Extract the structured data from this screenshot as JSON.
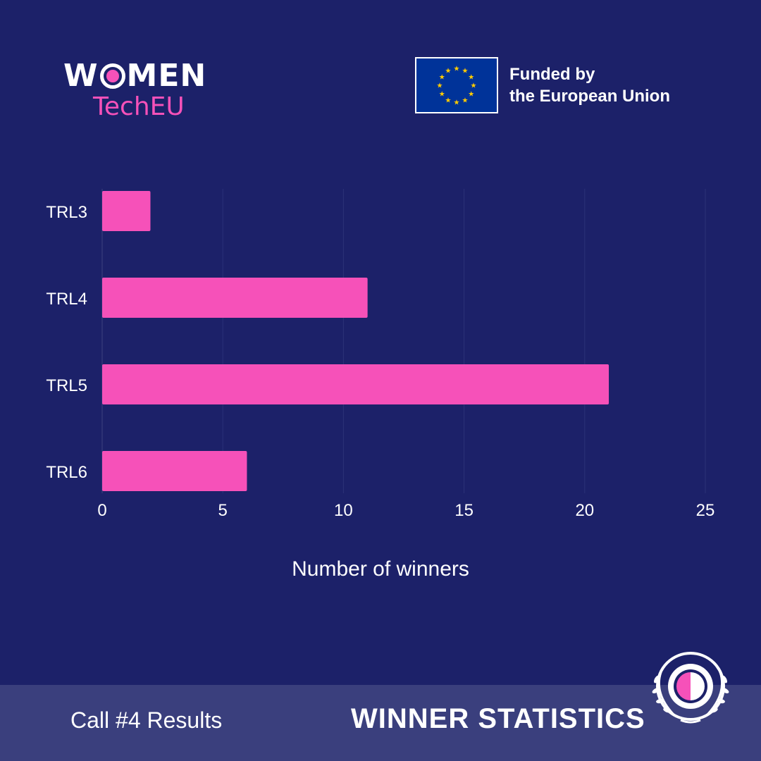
{
  "brand": {
    "women": "WOMEN",
    "women_pre": "W",
    "women_post": "MEN",
    "tech": "TechEU"
  },
  "eu": {
    "line1": "Funded by",
    "line2": "the European Union"
  },
  "colors": {
    "background": "#1c2169",
    "accent": "#f651b9",
    "footer": "#3a3f7d",
    "eu_blue": "#003399",
    "eu_star": "#ffcc00"
  },
  "footer": {
    "left": "Call #4 Results",
    "right": "WINNER STATISTICS"
  },
  "chart_data": {
    "type": "bar",
    "orientation": "horizontal",
    "categories": [
      "TRL3",
      "TRL4",
      "TRL5",
      "TRL6"
    ],
    "values": [
      2,
      11,
      21,
      6
    ],
    "title": "",
    "xlabel": "Number of winners",
    "ylabel": "",
    "xlim": [
      0,
      25
    ],
    "xticks": [
      0,
      5,
      10,
      15,
      20,
      25
    ],
    "grid": true
  }
}
